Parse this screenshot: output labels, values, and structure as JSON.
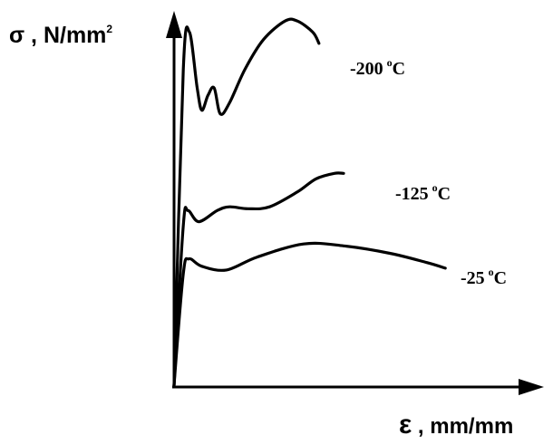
{
  "chart_data": {
    "type": "line",
    "title": "",
    "xlabel": "ε , mm/mm",
    "ylabel": "σ , N/mm²",
    "ylabel_parts": {
      "main": "σ , N/mm",
      "exp": "2"
    },
    "xlabel_parts": {
      "symbol": "ε",
      "rest": " , mm/mm"
    },
    "grid": false,
    "legend": "none",
    "series": [
      {
        "name": "-200 °C",
        "label_parts": {
          "value": "-200",
          "deg": "o",
          "unit": "C"
        },
        "x": [
          0.0,
          0.03,
          0.05,
          0.075,
          0.09,
          0.11,
          0.13,
          0.15,
          0.18,
          0.23,
          0.29,
          0.36,
          0.4,
          0.45,
          0.47
        ],
        "y": [
          0.0,
          0.85,
          0.95,
          0.8,
          0.74,
          0.78,
          0.8,
          0.73,
          0.76,
          0.85,
          0.93,
          0.98,
          0.98,
          0.95,
          0.92
        ]
      },
      {
        "name": "-125 °C",
        "label_parts": {
          "value": "-125",
          "deg": "o",
          "unit": "C"
        },
        "x": [
          0.0,
          0.03,
          0.045,
          0.08,
          0.14,
          0.18,
          0.24,
          0.31,
          0.4,
          0.46,
          0.52,
          0.55
        ],
        "y": [
          0.0,
          0.43,
          0.47,
          0.44,
          0.47,
          0.48,
          0.475,
          0.48,
          0.52,
          0.555,
          0.57,
          0.57
        ]
      },
      {
        "name": "-25 °C",
        "label_parts": {
          "value": "-25",
          "deg": "o",
          "unit": "C"
        },
        "x": [
          0.0,
          0.03,
          0.048,
          0.09,
          0.17,
          0.27,
          0.42,
          0.55,
          0.7,
          0.82,
          0.88
        ],
        "y": [
          0.0,
          0.3,
          0.34,
          0.32,
          0.31,
          0.345,
          0.38,
          0.375,
          0.355,
          0.33,
          0.315
        ]
      }
    ]
  }
}
